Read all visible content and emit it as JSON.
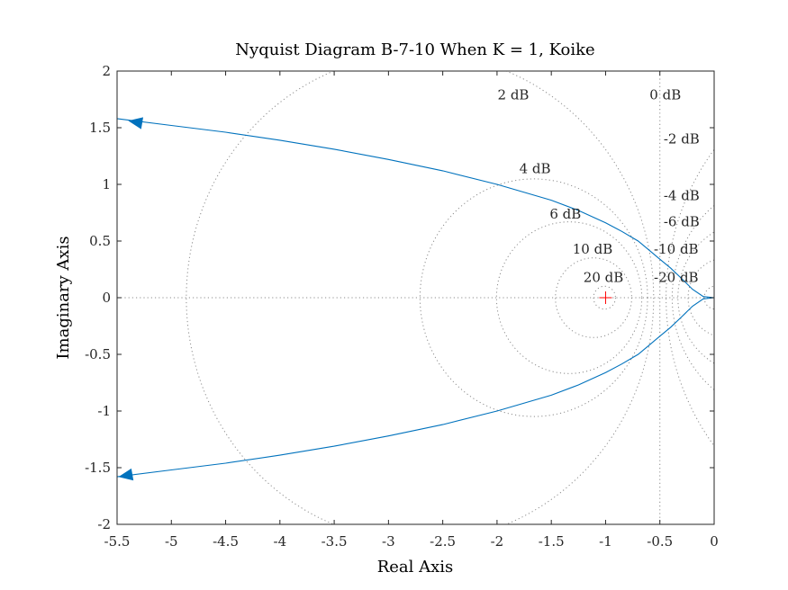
{
  "chart_data": {
    "type": "line",
    "title": "Nyquist Diagram B-7-10 When K = 1, Koike",
    "xlabel": "Real Axis",
    "ylabel": "Imaginary Axis",
    "xlim": [
      -5.5,
      0
    ],
    "ylim": [
      -2,
      2
    ],
    "x_ticks": [
      -5.5,
      -5,
      -4.5,
      -4,
      -3.5,
      -3,
      -2.5,
      -2,
      -1.5,
      -1,
      -0.5,
      0
    ],
    "x_tick_labels": [
      "-5.5",
      "-5",
      "-4.5",
      "-4",
      "-3.5",
      "-3",
      "-2.5",
      "-2",
      "-1.5",
      "-1",
      "-0.5",
      "0"
    ],
    "y_ticks": [
      2,
      1.5,
      1,
      0.5,
      0,
      -0.5,
      -1,
      -1.5,
      -2
    ],
    "y_tick_labels": [
      "2",
      "1.5",
      "1",
      "0.5",
      "0",
      "-0.5",
      "-1",
      "-1.5",
      "-2"
    ],
    "grid": "M-circles",
    "grid_db_labels": [
      {
        "text": "2 dB",
        "x": -1.85,
        "y": 1.79
      },
      {
        "text": "0 dB",
        "x": -0.45,
        "y": 1.79
      },
      {
        "text": "-2 dB",
        "x": -0.3,
        "y": 1.4
      },
      {
        "text": "4 dB",
        "x": -1.65,
        "y": 1.14
      },
      {
        "text": "-4 dB",
        "x": -0.3,
        "y": 0.9
      },
      {
        "text": "6 dB",
        "x": -1.37,
        "y": 0.74
      },
      {
        "text": "-6 dB",
        "x": -0.3,
        "y": 0.67
      },
      {
        "text": "10 dB",
        "x": -1.12,
        "y": 0.43
      },
      {
        "text": "-10 dB",
        "x": -0.35,
        "y": 0.43
      },
      {
        "text": "20 dB",
        "x": -1.02,
        "y": 0.18
      },
      {
        "text": "-20 dB",
        "x": -0.35,
        "y": 0.18
      }
    ],
    "critical_point": {
      "x": -1,
      "y": 0,
      "marker": "+",
      "color": "#ff0000"
    },
    "series": [
      {
        "color": "#0072BD",
        "points": [
          [
            0,
            0
          ],
          [
            -0.1,
            0.01
          ],
          [
            -0.2,
            0.075
          ],
          [
            -0.3,
            0.17
          ],
          [
            -0.4,
            0.26
          ],
          [
            -0.5,
            0.34
          ],
          [
            -0.6,
            0.42
          ],
          [
            -0.7,
            0.5
          ],
          [
            -0.85,
            0.585
          ],
          [
            -1.0,
            0.66
          ],
          [
            -1.25,
            0.77
          ],
          [
            -1.5,
            0.86
          ],
          [
            -2.0,
            1.0
          ],
          [
            -2.5,
            1.12
          ],
          [
            -3.0,
            1.22
          ],
          [
            -3.5,
            1.31
          ],
          [
            -4.0,
            1.39
          ],
          [
            -4.5,
            1.46
          ],
          [
            -5.0,
            1.52
          ],
          [
            -5.5,
            1.58
          ]
        ],
        "arrow_at": [
          -5.33,
          1.55
        ]
      },
      {
        "color": "#0072BD",
        "points": [
          [
            0,
            0
          ],
          [
            -0.1,
            -0.01
          ],
          [
            -0.2,
            -0.075
          ],
          [
            -0.3,
            -0.17
          ],
          [
            -0.4,
            -0.26
          ],
          [
            -0.5,
            -0.34
          ],
          [
            -0.6,
            -0.42
          ],
          [
            -0.7,
            -0.5
          ],
          [
            -0.85,
            -0.585
          ],
          [
            -1.0,
            -0.66
          ],
          [
            -1.25,
            -0.77
          ],
          [
            -1.5,
            -0.86
          ],
          [
            -2.0,
            -1.0
          ],
          [
            -2.5,
            -1.12
          ],
          [
            -3.0,
            -1.22
          ],
          [
            -3.5,
            -1.31
          ],
          [
            -4.0,
            -1.39
          ],
          [
            -4.5,
            -1.46
          ],
          [
            -5.0,
            -1.52
          ],
          [
            -5.5,
            -1.58
          ]
        ],
        "arrow_at": [
          -5.42,
          -1.57
        ]
      }
    ]
  }
}
